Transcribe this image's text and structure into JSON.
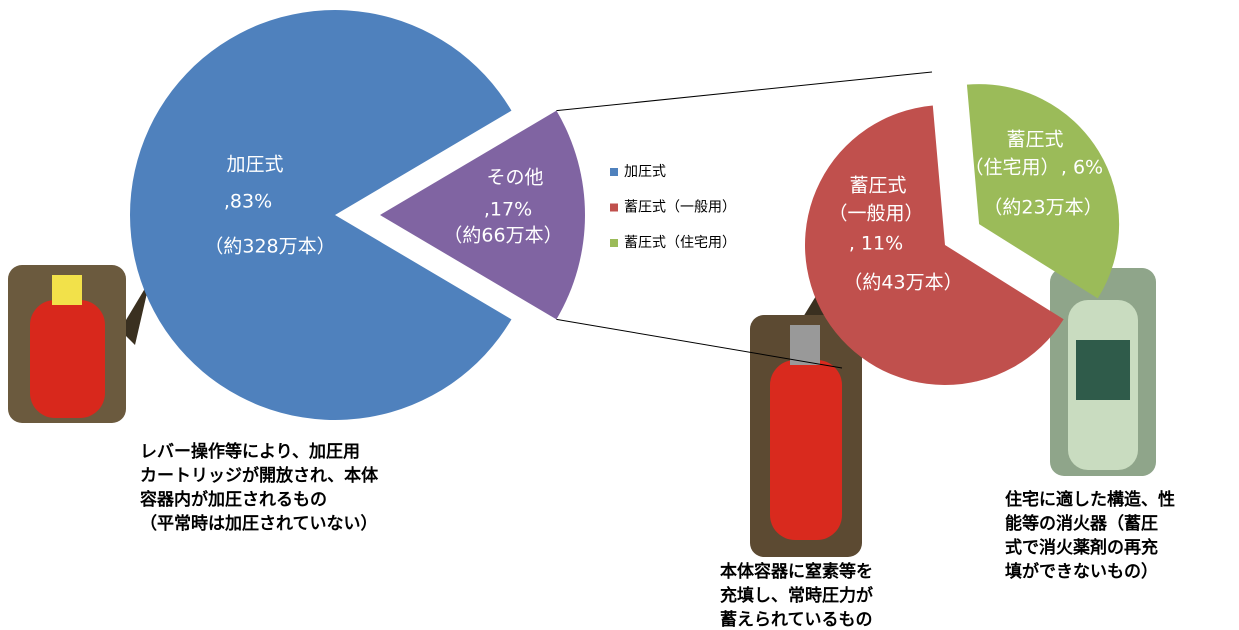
{
  "chart_data": {
    "type": "pie-of-pie",
    "primary": {
      "categories": [
        "加圧式",
        "その他"
      ],
      "values": [
        83,
        17
      ],
      "value_labels": [
        ",83%",
        ",17%"
      ],
      "count_labels": [
        "（約328万本）",
        "（約66万本）"
      ],
      "colors": [
        "#4f81bd",
        "#8064a2"
      ]
    },
    "secondary": {
      "categories": [
        "蓄圧式（一般用）",
        "蓄圧式（住宅用）"
      ],
      "values": [
        11,
        6
      ],
      "name_lines": [
        [
          "蓄圧式",
          "（一般用）"
        ],
        [
          "蓄圧式",
          "（住宅用）"
        ]
      ],
      "value_labels": [
        ", 11%",
        ", 6%"
      ],
      "count_labels": [
        "（約43万本）",
        "（約23万本）"
      ],
      "colors": [
        "#c0504d",
        "#9bbb59"
      ]
    },
    "legend": {
      "entries": [
        "加圧式",
        "蓄圧式（一般用）",
        "蓄圧式（住宅用）"
      ],
      "colors": [
        "#4f81bd",
        "#c0504d",
        "#9bbb59"
      ]
    },
    "annotations": [
      [
        "レバー操作等により、加圧用",
        "カートリッジが開放され、本体",
        "容器内が加圧されるもの",
        "（平常時は加圧されていない）"
      ],
      [
        "本体容器に窒素等を",
        "充填し、常時圧力が",
        "蓄えられているもの"
      ],
      [
        "住宅に適した構造、性",
        "能等の消火器（蓄圧",
        "式で消火薬剤の再充",
        "填ができないもの）"
      ]
    ]
  }
}
